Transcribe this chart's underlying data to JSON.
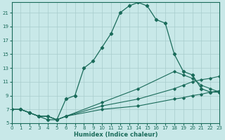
{
  "xlabel": "Humidex (Indice chaleur)",
  "bg_color": "#c8e8e8",
  "grid_color": "#a8cccc",
  "line_color": "#1a6b5a",
  "xlim": [
    0,
    23
  ],
  "ylim": [
    5,
    22.5
  ],
  "yticks": [
    5,
    7,
    9,
    11,
    13,
    15,
    17,
    19,
    21
  ],
  "xticks": [
    0,
    1,
    2,
    3,
    4,
    5,
    6,
    7,
    8,
    9,
    10,
    11,
    12,
    13,
    14,
    15,
    16,
    17,
    18,
    19,
    20,
    21,
    22,
    23
  ],
  "main_x": [
    1,
    2,
    3,
    4,
    5,
    6,
    7,
    8,
    9,
    10,
    11,
    12,
    13,
    14,
    15,
    16,
    17,
    18,
    19,
    20,
    21,
    22,
    23
  ],
  "main_y": [
    7,
    6.5,
    6,
    5.5,
    5.5,
    8.5,
    9,
    13,
    14,
    16,
    18,
    21,
    22,
    22.5,
    22,
    20,
    19.5,
    15,
    12.5,
    12,
    10,
    9.5,
    9.5
  ],
  "low1_x": [
    0,
    1,
    2,
    3,
    4,
    5,
    6,
    10,
    14,
    18,
    19,
    20,
    21,
    22,
    23
  ],
  "low1_y": [
    7,
    7,
    6.5,
    6,
    6,
    5.5,
    6,
    7,
    7.5,
    8.5,
    8.7,
    9,
    9.2,
    9.5,
    9.7
  ],
  "low2_x": [
    0,
    1,
    2,
    3,
    4,
    5,
    6,
    10,
    14,
    18,
    19,
    20,
    21,
    22,
    23
  ],
  "low2_y": [
    7,
    7,
    6.5,
    6,
    6,
    5.5,
    6,
    7.5,
    8.5,
    10,
    10.5,
    11,
    11.3,
    11.5,
    11.8
  ],
  "low3_x": [
    0,
    1,
    2,
    3,
    4,
    5,
    6,
    10,
    14,
    18,
    19,
    20,
    21,
    22,
    23
  ],
  "low3_y": [
    7,
    7,
    6.5,
    6,
    6,
    5.5,
    6,
    8,
    10,
    12.5,
    12,
    11.5,
    10.5,
    10,
    9.5
  ]
}
